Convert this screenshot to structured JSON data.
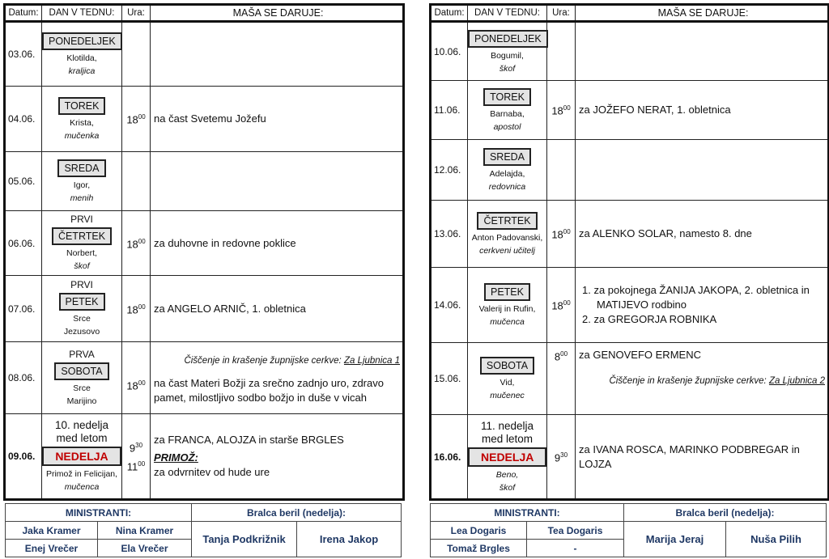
{
  "headers": {
    "date": "Datum:",
    "day": "DAN V TEDNU:",
    "time": "Ura:",
    "mass": "MAŠA SE DARUJE:"
  },
  "colors": {
    "sunday": "#c00000",
    "day_box": "#e4e4e4",
    "footer_text": "#1f3864"
  },
  "weeks": [
    {
      "rows": [
        {
          "date": "03.06.",
          "bold": false,
          "pre": [],
          "day": "PONEDELJEK",
          "sunday": false,
          "saint": [
            "Klotilda,",
            "kraljica"
          ],
          "saint_italic": [
            false,
            true
          ],
          "times": [],
          "mass": []
        },
        {
          "date": "04.06.",
          "bold": false,
          "pre": [],
          "day": "TOREK",
          "sunday": false,
          "saint": [
            "Krista,",
            "mučenka"
          ],
          "saint_italic": [
            false,
            true
          ],
          "times": [
            {
              "h": "18",
              "m": "00"
            }
          ],
          "mass": [
            {
              "type": "text",
              "text": "na čast Svetemu Jožefu"
            }
          ]
        },
        {
          "date": "05.06.",
          "bold": false,
          "pre": [],
          "day": "SREDA",
          "sunday": false,
          "saint": [
            "Igor,",
            "menih"
          ],
          "saint_italic": [
            false,
            true
          ],
          "times": [],
          "mass": []
        },
        {
          "date": "06.06.",
          "bold": false,
          "pre": [
            "PRVI"
          ],
          "day": "ČETRTEK",
          "sunday": false,
          "saint": [
            "Norbert,",
            "škof"
          ],
          "saint_italic": [
            false,
            true
          ],
          "times": [
            {
              "h": "18",
              "m": "00"
            }
          ],
          "mass": [
            {
              "type": "text",
              "text": "za duhovne in redovne poklice"
            }
          ]
        },
        {
          "date": "07.06.",
          "bold": false,
          "pre": [
            "PRVI"
          ],
          "day": "PETEK",
          "sunday": false,
          "saint": [
            "Srce",
            "Jezusovo"
          ],
          "saint_italic": [
            false,
            false
          ],
          "times": [
            {
              "h": "18",
              "m": "00"
            }
          ],
          "mass": [
            {
              "type": "text",
              "text": "za ANGELO ARNIČ, 1. obletnica"
            }
          ]
        },
        {
          "date": "08.06.",
          "bold": false,
          "pre": [
            "PRVA"
          ],
          "day": "SOBOTA",
          "sunday": false,
          "saint": [
            "Srce",
            "Marijino"
          ],
          "saint_italic": [
            false,
            false
          ],
          "times": [
            {
              "h": "18",
              "m": "00"
            }
          ],
          "mass": [
            {
              "type": "note",
              "label": "Čiščenje in krašenje župnijske cerkve: ",
              "link": "Za Ljubnica 1"
            },
            {
              "type": "text",
              "text": "na čast Materi Božji za srečno zadnjo uro, zdravo pamet, milostljivo sodbo božjo in duše v vicah"
            }
          ]
        },
        {
          "date": "09.06.",
          "bold": true,
          "pre": [
            "10. nedelja",
            "med letom"
          ],
          "day": "NEDELJA",
          "sunday": true,
          "saint": [
            "Primož in Felicijan,",
            "mučenca"
          ],
          "saint_italic": [
            false,
            true
          ],
          "times": [
            {
              "h": "9",
              "m": "30"
            },
            {
              "h": "11",
              "m": "00"
            }
          ],
          "mass": [
            {
              "type": "text",
              "text": "za FRANCA, ALOJZA in starše BRGLES"
            },
            {
              "type": "heading",
              "text": "PRIMOŽ:"
            },
            {
              "type": "text",
              "text": "za odvrnitev od hude ure"
            }
          ]
        }
      ],
      "footer": {
        "ministranti_label": "MINISTRANTI:",
        "bralci_label": "Bralca beril (nedelja):",
        "ministranti": [
          "Jaka Kramer",
          "Nina Kramer",
          "Enej Vrečer",
          "Ela Vrečer"
        ],
        "bralci": [
          "Tanja Podkrižnik",
          "Irena Jakop"
        ]
      }
    },
    {
      "rows": [
        {
          "date": "10.06.",
          "bold": false,
          "pre": [],
          "day": "PONEDELJEK",
          "sunday": false,
          "saint": [
            "Bogumil,",
            "škof"
          ],
          "saint_italic": [
            false,
            true
          ],
          "times": [],
          "mass": []
        },
        {
          "date": "11.06.",
          "bold": false,
          "pre": [],
          "day": "TOREK",
          "sunday": false,
          "saint": [
            "Barnaba,",
            "apostol"
          ],
          "saint_italic": [
            false,
            true
          ],
          "times": [
            {
              "h": "18",
              "m": "00"
            }
          ],
          "mass": [
            {
              "type": "text",
              "text": "za JOŽEFO NERAT, 1. obletnica"
            }
          ]
        },
        {
          "date": "12.06.",
          "bold": false,
          "pre": [],
          "day": "SREDA",
          "sunday": false,
          "saint": [
            "Adelajda,",
            "redovnica"
          ],
          "saint_italic": [
            false,
            true
          ],
          "times": [],
          "mass": []
        },
        {
          "date": "13.06.",
          "bold": false,
          "pre": [],
          "day": "ČETRTEK",
          "sunday": false,
          "saint": [
            "Anton Padovanski,",
            "cerkveni učitelj"
          ],
          "saint_italic": [
            false,
            true
          ],
          "times": [
            {
              "h": "18",
              "m": "00"
            }
          ],
          "mass": [
            {
              "type": "text",
              "text": "za ALENKO SOLAR, namesto 8. dne"
            }
          ]
        },
        {
          "date": "14.06.",
          "bold": false,
          "pre": [],
          "day": "PETEK",
          "sunday": false,
          "saint": [
            "Valerij in Rufin,",
            "mučenca"
          ],
          "saint_italic": [
            false,
            true
          ],
          "times": [
            {
              "h": "18",
              "m": "00"
            }
          ],
          "mass": [
            {
              "type": "num",
              "text": "1. za pokojnega ŽANIJA JAKOPA, 2. obletnica in MATIJEVO rodbino"
            },
            {
              "type": "num",
              "text": "2. za GREGORJA ROBNIKA"
            }
          ]
        },
        {
          "date": "15.06.",
          "bold": false,
          "pre": [],
          "day": "SOBOTA",
          "sunday": false,
          "saint": [
            "Vid,",
            "mučenec"
          ],
          "saint_italic": [
            false,
            true
          ],
          "times": [
            {
              "h": "8",
              "m": "00"
            }
          ],
          "mass": [
            {
              "type": "text",
              "text": "za GENOVEFO ERMENC"
            },
            {
              "type": "note_after",
              "label": "Čiščenje in krašenje župnijske cerkve: ",
              "link": "Za Ljubnica 2"
            }
          ]
        },
        {
          "date": "16.06.",
          "bold": true,
          "pre": [
            "11. nedelja",
            "med letom"
          ],
          "day": "NEDELJA",
          "sunday": true,
          "saint": [
            "Beno,",
            "škof"
          ],
          "saint_italic": [
            true,
            true
          ],
          "times": [
            {
              "h": "9",
              "m": "30"
            }
          ],
          "mass": [
            {
              "type": "text",
              "text": "za IVANA ROSCA, MARINKO PODBREGAR in LOJZA"
            }
          ]
        }
      ],
      "footer": {
        "ministranti_label": "MINISTRANTI:",
        "bralci_label": "Bralca beril (nedelja):",
        "ministranti": [
          "Lea Dogaris",
          "Tea Dogaris",
          "Tomaž Brgles",
          "-"
        ],
        "bralci": [
          "Marija Jeraj",
          "Nuša Pilih"
        ]
      }
    }
  ]
}
